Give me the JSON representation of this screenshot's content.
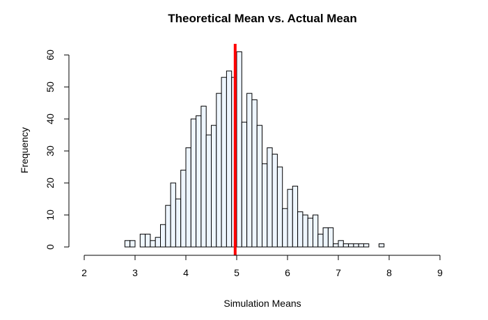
{
  "chart_data": {
    "type": "bar",
    "title": "Theoretical Mean vs. Actual Mean",
    "xlabel": "Simulation Means",
    "ylabel": "Frequency",
    "xlim": [
      2,
      9
    ],
    "ylim": [
      0,
      60
    ],
    "x_ticks": [
      "2",
      "3",
      "4",
      "5",
      "6",
      "7",
      "8",
      "9"
    ],
    "y_ticks": [
      "0",
      "10",
      "20",
      "30",
      "40",
      "50",
      "60"
    ],
    "bin_width": 0.1,
    "bin_start": 2.8,
    "values": [
      2,
      2,
      0,
      4,
      4,
      2,
      3,
      7,
      13,
      20,
      15,
      24,
      31,
      40,
      41,
      44,
      35,
      38,
      48,
      53,
      55,
      53,
      61,
      39,
      48,
      46,
      38,
      26,
      31,
      29,
      25,
      12,
      18,
      19,
      11,
      10,
      9,
      10,
      4,
      6,
      6,
      1,
      2,
      1,
      1,
      1,
      1,
      1,
      0,
      0,
      1
    ],
    "bar_fill": "#eef6ff",
    "bar_stroke": "#000000",
    "grid": false,
    "vline": {
      "x": 4.97,
      "color": "#ff0000"
    }
  }
}
